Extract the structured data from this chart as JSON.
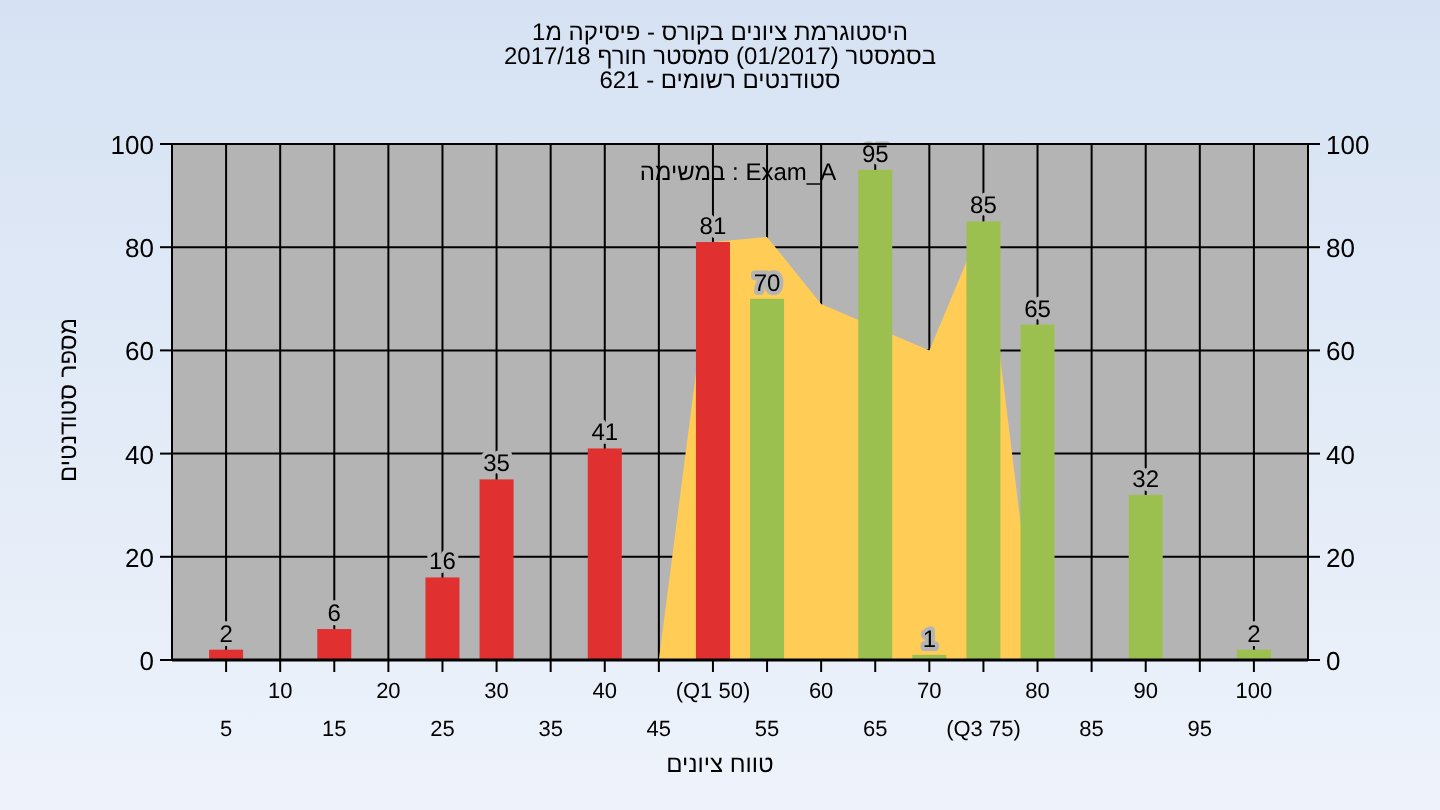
{
  "chart_data": {
    "type": "bar",
    "title": "היסטוגרמת ציונים בקורס - פיסיקה מ1",
    "subtitle": "בסמסטר  (01/2017)  סמסטר חורף 2017/18",
    "annotations": [
      "סטודנטים רשומים - 621",
      "במשימה : Exam_A"
    ],
    "xlabel": "טווח ציונים",
    "ylabel": "מספר סטודנטים",
    "categories": [
      "5",
      "10",
      "15",
      "20",
      "25",
      "30",
      "35",
      "40",
      "45",
      "(Q1 50)",
      "55",
      "60",
      "65",
      "70",
      "(Q3 75)",
      "80",
      "85",
      "90",
      "95",
      "100"
    ],
    "series": [
      {
        "type": "area",
        "color": "#ffcc55",
        "values": [
          null,
          null,
          null,
          null,
          null,
          null,
          null,
          null,
          0,
          81,
          82,
          69,
          null,
          60,
          85,
          0,
          null,
          null,
          null,
          null
        ]
      },
      {
        "colors": [
          "#e03030",
          null,
          "#e03030",
          null,
          "#e03030",
          "#e03030",
          null,
          "#e03030",
          null,
          "#e03030",
          "#9cc050",
          null,
          "#9cc050",
          "#9cc050",
          "#9cc050",
          "#9cc050",
          null,
          "#9cc050",
          null,
          "#9cc050"
        ],
        "values": [
          2,
          null,
          6,
          null,
          16,
          35,
          null,
          41,
          null,
          81,
          70,
          null,
          95,
          1,
          85,
          65,
          null,
          32,
          null,
          2
        ],
        "value_labels": [
          "2",
          null,
          "6",
          null,
          "16",
          "35",
          null,
          "41",
          null,
          "81",
          "70",
          null,
          "95",
          "1",
          "85",
          "65",
          null,
          "32",
          null,
          "2"
        ]
      }
    ],
    "grid": true,
    "ylim": [
      0,
      100
    ],
    "yticks": [
      0,
      20,
      40,
      60,
      80,
      100
    ],
    "y2lim": [
      0,
      100
    ],
    "y2ticks": [
      0,
      20,
      40,
      60,
      80,
      100
    ]
  }
}
